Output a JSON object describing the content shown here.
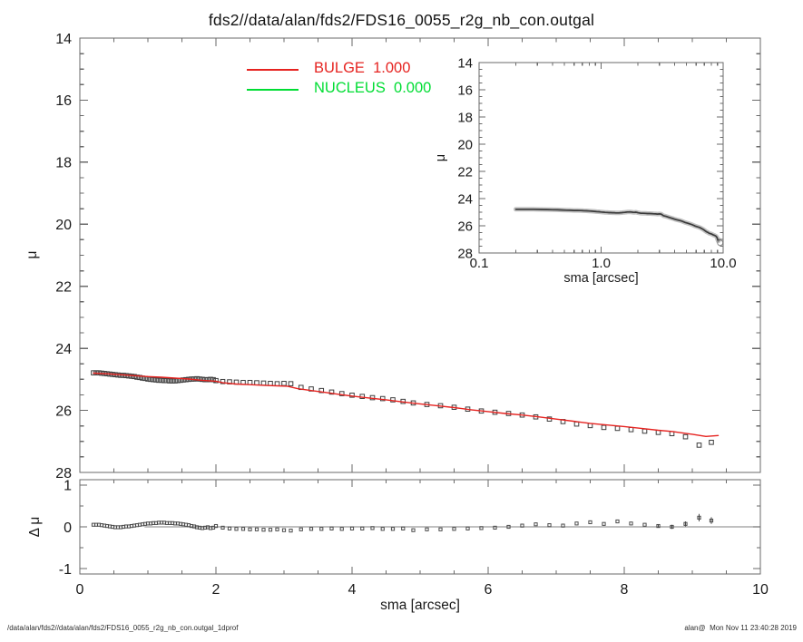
{
  "page": {
    "title": "fds2//data/alan/fds2/FDS16_0055_r2g_nb_con.outgal",
    "footer_left": "/data/alan/fds2//data/alan/fds2/FDS16_0055_r2g_nb_con.outgal_1dprof",
    "footer_right": "alan@  Mon Nov 11 23:40:28 2019"
  },
  "legend": {
    "items": [
      {
        "label": "BULGE  1.000",
        "color": "#e62320"
      },
      {
        "label": "NUCLEUS  0.000",
        "color": "#00dd33"
      }
    ]
  },
  "labels": {
    "main_y": "μ",
    "residual_y": "Δ μ",
    "x": "sma [arcsec]",
    "inset_y": "μ",
    "inset_x": "sma [arcsec]"
  },
  "colors": {
    "axis": "#6a6a6a",
    "data_marker": "#3d3d3d",
    "band": "#c2c2c2",
    "zero_line": "#9a9a9a"
  },
  "chart_data": [
    {
      "id": "main",
      "type": "scatter",
      "title": "fds2//data/alan/fds2/FDS16_0055_r2g_nb_con.outgal",
      "xlabel": "sma [arcsec]",
      "ylabel": "μ",
      "xlim": [
        0,
        10
      ],
      "ylim": [
        14,
        28
      ],
      "y_axis_inverted": true,
      "x_major_ticks": [
        0,
        2,
        4,
        6,
        8,
        10
      ],
      "x_minor_step": 0.5,
      "y_major_ticks": [
        14,
        16,
        18,
        20,
        22,
        24,
        26,
        28
      ],
      "y_tick_labels": [
        "14",
        "16",
        "18",
        "20",
        "22",
        "24",
        "26",
        "28"
      ],
      "y_minor_step": 0.5,
      "series": [
        {
          "name": "observed-profile",
          "style": "markers",
          "marker": "open-square",
          "color": "#3d3d3d",
          "points": [
            [
              0.2,
              24.79
            ],
            [
              0.24,
              24.79
            ],
            [
              0.28,
              24.79
            ],
            [
              0.32,
              24.8
            ],
            [
              0.36,
              24.81
            ],
            [
              0.4,
              24.82
            ],
            [
              0.44,
              24.83
            ],
            [
              0.48,
              24.84
            ],
            [
              0.52,
              24.85
            ],
            [
              0.56,
              24.86
            ],
            [
              0.6,
              24.87
            ],
            [
              0.64,
              24.87
            ],
            [
              0.68,
              24.88
            ],
            [
              0.72,
              24.89
            ],
            [
              0.76,
              24.9
            ],
            [
              0.8,
              24.91
            ],
            [
              0.84,
              24.93
            ],
            [
              0.88,
              24.94
            ],
            [
              0.92,
              24.96
            ],
            [
              0.96,
              24.97
            ],
            [
              1.0,
              24.99
            ],
            [
              1.04,
              25.0
            ],
            [
              1.08,
              25.01
            ],
            [
              1.12,
              25.02
            ],
            [
              1.16,
              25.03
            ],
            [
              1.2,
              25.03
            ],
            [
              1.24,
              25.04
            ],
            [
              1.28,
              25.04
            ],
            [
              1.32,
              25.05
            ],
            [
              1.36,
              25.05
            ],
            [
              1.4,
              25.05
            ],
            [
              1.44,
              25.04
            ],
            [
              1.48,
              25.03
            ],
            [
              1.52,
              25.02
            ],
            [
              1.56,
              25.01
            ],
            [
              1.6,
              25.0
            ],
            [
              1.64,
              24.99
            ],
            [
              1.68,
              24.99
            ],
            [
              1.72,
              24.98
            ],
            [
              1.76,
              24.99
            ],
            [
              1.8,
              25.0
            ],
            [
              1.84,
              25.01
            ],
            [
              1.88,
              25.01
            ],
            [
              1.92,
              25.0
            ],
            [
              1.96,
              25.01
            ],
            [
              2.0,
              25.04
            ],
            [
              2.1,
              25.07
            ],
            [
              2.2,
              25.08
            ],
            [
              2.3,
              25.09
            ],
            [
              2.4,
              25.1
            ],
            [
              2.5,
              25.1
            ],
            [
              2.6,
              25.11
            ],
            [
              2.7,
              25.12
            ],
            [
              2.8,
              25.13
            ],
            [
              2.9,
              25.14
            ],
            [
              3.0,
              25.13
            ],
            [
              3.1,
              25.14
            ],
            [
              3.25,
              25.26
            ],
            [
              3.4,
              25.31
            ],
            [
              3.55,
              25.36
            ],
            [
              3.7,
              25.41
            ],
            [
              3.85,
              25.46
            ],
            [
              4.0,
              25.51
            ],
            [
              4.15,
              25.55
            ],
            [
              4.3,
              25.59
            ],
            [
              4.45,
              25.62
            ],
            [
              4.6,
              25.66
            ],
            [
              4.75,
              25.71
            ],
            [
              4.9,
              25.76
            ],
            [
              5.1,
              25.81
            ],
            [
              5.3,
              25.85
            ],
            [
              5.5,
              25.9
            ],
            [
              5.7,
              25.96
            ],
            [
              5.9,
              26.02
            ],
            [
              6.1,
              26.06
            ],
            [
              6.3,
              26.1
            ],
            [
              6.5,
              26.15
            ],
            [
              6.7,
              26.21
            ],
            [
              6.9,
              26.28
            ],
            [
              7.1,
              26.36
            ],
            [
              7.3,
              26.44
            ],
            [
              7.5,
              26.49
            ],
            [
              7.7,
              26.55
            ],
            [
              7.9,
              26.58
            ],
            [
              8.1,
              26.62
            ],
            [
              8.3,
              26.67
            ],
            [
              8.5,
              26.71
            ],
            [
              8.7,
              26.75
            ],
            [
              8.9,
              26.85
            ],
            [
              9.1,
              27.12
            ],
            [
              9.28,
              27.03
            ]
          ]
        },
        {
          "name": "BULGE",
          "amplitude": "1.000",
          "style": "line",
          "color": "#e62320",
          "points": [
            [
              0.2,
              24.8
            ],
            [
              0.4,
              24.82
            ],
            [
              0.6,
              24.85
            ],
            [
              0.8,
              24.88
            ],
            [
              1.0,
              24.91
            ],
            [
              1.2,
              24.93
            ],
            [
              1.4,
              24.96
            ],
            [
              1.6,
              24.99
            ],
            [
              1.8,
              25.03
            ],
            [
              2.0,
              25.06
            ],
            [
              2.1,
              25.11
            ],
            [
              2.3,
              25.15
            ],
            [
              2.5,
              25.17
            ],
            [
              2.7,
              25.19
            ],
            [
              2.9,
              25.21
            ],
            [
              3.05,
              25.22
            ],
            [
              3.2,
              25.3
            ],
            [
              3.4,
              25.36
            ],
            [
              3.6,
              25.42
            ],
            [
              3.8,
              25.48
            ],
            [
              4.0,
              25.54
            ],
            [
              4.25,
              25.6
            ],
            [
              4.5,
              25.66
            ],
            [
              4.75,
              25.73
            ],
            [
              5.0,
              25.79
            ],
            [
              5.25,
              25.85
            ],
            [
              5.5,
              25.91
            ],
            [
              5.75,
              25.98
            ],
            [
              6.0,
              26.04
            ],
            [
              6.25,
              26.1
            ],
            [
              6.5,
              26.15
            ],
            [
              6.75,
              26.21
            ],
            [
              7.0,
              26.28
            ],
            [
              7.25,
              26.35
            ],
            [
              7.5,
              26.42
            ],
            [
              7.75,
              26.47
            ],
            [
              8.0,
              26.52
            ],
            [
              8.25,
              26.58
            ],
            [
              8.5,
              26.64
            ],
            [
              8.7,
              26.68
            ],
            [
              9.0,
              26.77
            ],
            [
              9.2,
              26.84
            ],
            [
              9.38,
              26.81
            ]
          ]
        },
        {
          "name": "NUCLEUS",
          "amplitude": "0.000",
          "style": "line",
          "color": "#00dd33",
          "points": []
        }
      ]
    },
    {
      "id": "inset",
      "type": "line",
      "xlabel": "sma [arcsec]",
      "ylabel": "μ",
      "x_scale": "log",
      "xlim": [
        0.1,
        10
      ],
      "ylim": [
        14,
        28
      ],
      "y_axis_inverted": true,
      "x_major_ticks": [
        0.1,
        1.0,
        10.0
      ],
      "x_tick_labels": [
        "0.1",
        "1.0",
        "10.0"
      ],
      "y_major_ticks": [
        14,
        16,
        18,
        20,
        22,
        24,
        26,
        28
      ],
      "y_tick_labels": [
        "14",
        "16",
        "18",
        "20",
        "22",
        "24",
        "26",
        "28"
      ],
      "y_minor_step": 0.5,
      "series": [
        {
          "name": "observed-profile",
          "style": "band-line",
          "color": "#3a3a3a",
          "band_color": "#c2c2c2",
          "points_from": "main-observed"
        }
      ],
      "end_marker": [
        9.45,
        27.25
      ]
    },
    {
      "id": "residual",
      "type": "scatter",
      "xlabel": "sma [arcsec]",
      "ylabel": "Δ μ",
      "xlim": [
        0,
        10
      ],
      "ylim": [
        1.13,
        -1.13
      ],
      "x_major_ticks": [
        0,
        2,
        4,
        6,
        8,
        10
      ],
      "x_tick_labels": [
        "0",
        "2",
        "4",
        "6",
        "8",
        "10"
      ],
      "x_minor_step": 0.5,
      "y_major_ticks": [
        1,
        0,
        -1
      ],
      "y_tick_labels": [
        "1",
        "0",
        "-1"
      ],
      "y_minor_step": 0.5,
      "zero_line": {
        "from": 0.95,
        "to": 10,
        "color": "#9a9a9a"
      },
      "points": [
        [
          0.2,
          0.05,
          0
        ],
        [
          0.24,
          0.05,
          0
        ],
        [
          0.28,
          0.05,
          0
        ],
        [
          0.32,
          0.04,
          0
        ],
        [
          0.36,
          0.03,
          0
        ],
        [
          0.4,
          0.02,
          0
        ],
        [
          0.44,
          0.01,
          0
        ],
        [
          0.48,
          0.0,
          0
        ],
        [
          0.52,
          -0.01,
          0
        ],
        [
          0.56,
          -0.01,
          0
        ],
        [
          0.6,
          -0.01,
          0
        ],
        [
          0.64,
          0.0,
          0
        ],
        [
          0.68,
          0.01,
          0
        ],
        [
          0.72,
          0.01,
          0
        ],
        [
          0.76,
          0.02,
          0
        ],
        [
          0.8,
          0.03,
          0
        ],
        [
          0.84,
          0.04,
          0
        ],
        [
          0.88,
          0.05,
          0
        ],
        [
          0.92,
          0.06,
          0
        ],
        [
          0.96,
          0.07,
          0
        ],
        [
          1.0,
          0.08,
          0
        ],
        [
          1.04,
          0.08,
          0
        ],
        [
          1.08,
          0.09,
          0
        ],
        [
          1.12,
          0.09,
          0
        ],
        [
          1.16,
          0.1,
          0
        ],
        [
          1.2,
          0.1,
          0
        ],
        [
          1.24,
          0.1,
          0
        ],
        [
          1.28,
          0.09,
          0
        ],
        [
          1.32,
          0.09,
          0
        ],
        [
          1.36,
          0.09,
          0
        ],
        [
          1.4,
          0.08,
          0
        ],
        [
          1.44,
          0.08,
          0
        ],
        [
          1.48,
          0.07,
          0
        ],
        [
          1.52,
          0.06,
          0
        ],
        [
          1.56,
          0.05,
          0
        ],
        [
          1.6,
          0.04,
          0
        ],
        [
          1.64,
          0.02,
          0
        ],
        [
          1.68,
          0.01,
          0
        ],
        [
          1.72,
          -0.01,
          0
        ],
        [
          1.76,
          -0.02,
          0
        ],
        [
          1.8,
          -0.03,
          0
        ],
        [
          1.84,
          -0.02,
          0
        ],
        [
          1.88,
          -0.01,
          0
        ],
        [
          1.92,
          -0.03,
          0
        ],
        [
          1.96,
          -0.02,
          0
        ],
        [
          2.0,
          0.02,
          0
        ],
        [
          2.1,
          -0.02,
          0
        ],
        [
          2.2,
          -0.04,
          0
        ],
        [
          2.3,
          -0.05,
          0
        ],
        [
          2.4,
          -0.05,
          0
        ],
        [
          2.5,
          -0.06,
          0
        ],
        [
          2.6,
          -0.06,
          0
        ],
        [
          2.7,
          -0.07,
          0
        ],
        [
          2.8,
          -0.07,
          0
        ],
        [
          2.9,
          -0.06,
          0
        ],
        [
          3.0,
          -0.08,
          0
        ],
        [
          3.1,
          -0.09,
          0
        ],
        [
          3.25,
          -0.06,
          0
        ],
        [
          3.4,
          -0.05,
          0
        ],
        [
          3.55,
          -0.05,
          0
        ],
        [
          3.7,
          -0.04,
          0
        ],
        [
          3.85,
          -0.05,
          0
        ],
        [
          4.0,
          -0.04,
          0
        ],
        [
          4.15,
          -0.04,
          0
        ],
        [
          4.3,
          -0.03,
          0
        ],
        [
          4.45,
          -0.05,
          0
        ],
        [
          4.6,
          -0.05,
          0
        ],
        [
          4.75,
          -0.04,
          0
        ],
        [
          4.9,
          -0.08,
          0
        ],
        [
          5.1,
          -0.06,
          0
        ],
        [
          5.3,
          -0.06,
          0
        ],
        [
          5.5,
          -0.05,
          0
        ],
        [
          5.7,
          -0.04,
          0
        ],
        [
          5.9,
          -0.03,
          0
        ],
        [
          6.1,
          -0.02,
          0
        ],
        [
          6.3,
          0.0,
          0
        ],
        [
          6.5,
          0.03,
          0
        ],
        [
          6.7,
          0.06,
          0
        ],
        [
          6.9,
          0.04,
          0
        ],
        [
          7.1,
          0.03,
          0
        ],
        [
          7.3,
          0.08,
          0
        ],
        [
          7.5,
          0.11,
          0
        ],
        [
          7.7,
          0.07,
          0
        ],
        [
          7.9,
          0.13,
          0
        ],
        [
          8.1,
          0.08,
          0
        ],
        [
          8.3,
          0.05,
          0
        ],
        [
          8.5,
          0.02,
          0.04
        ],
        [
          8.7,
          0.0,
          0.05
        ],
        [
          8.9,
          0.07,
          0.06
        ],
        [
          9.1,
          0.22,
          0.09
        ],
        [
          9.28,
          0.15,
          0.08
        ]
      ]
    }
  ]
}
